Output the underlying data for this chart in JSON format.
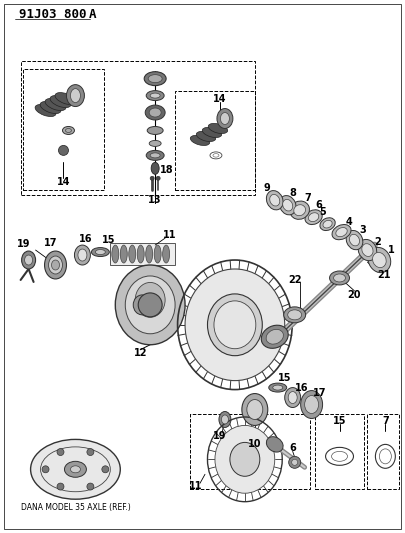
{
  "title": "91J03 800 A",
  "bg": "#ffffff",
  "figsize": [
    4.05,
    5.33
  ],
  "dpi": 100,
  "dana_label": "DANA MODEL 35 AXLE (REF.)"
}
